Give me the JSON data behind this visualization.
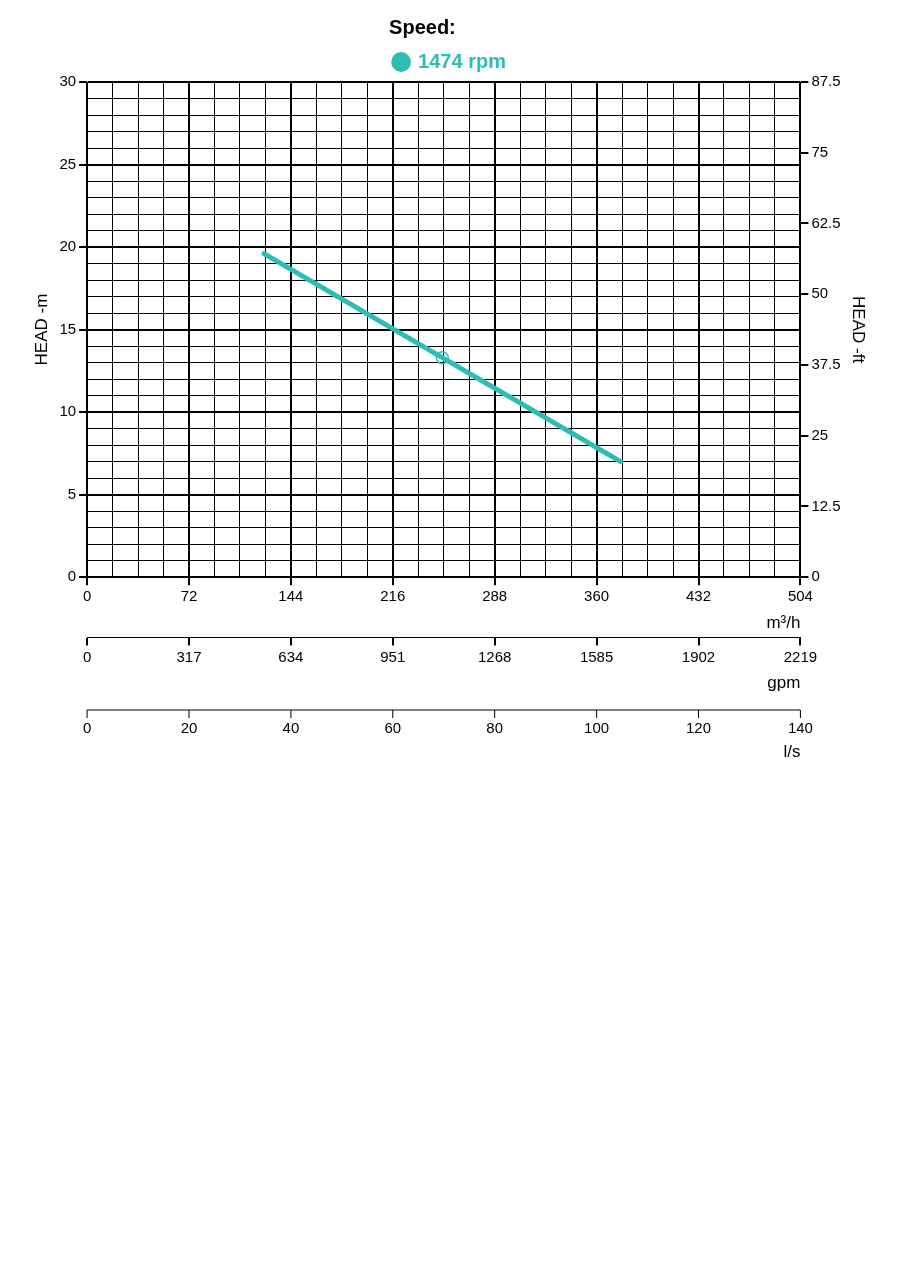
{
  "chart_data": {
    "type": "line",
    "legend_title": "Speed:",
    "legend": "top",
    "xlabel": "m³/h",
    "x2label": "gpm",
    "annotations": [
      "0",
      "20",
      "40",
      "60",
      "80",
      "100",
      "120",
      "140",
      "l/s"
    ],
    "ylabel": "HEAD -m",
    "y2label": "HEAD -ft",
    "xlim": [
      0,
      504
    ],
    "xticks": [
      0,
      {
        "value": 18,
        "label": null
      },
      {
        "value": 36,
        "label": null
      },
      {
        "value": 54,
        "label": null
      },
      72,
      {
        "value": 90,
        "label": null
      },
      {
        "value": 108,
        "label": null
      },
      {
        "value": 126,
        "label": null
      },
      144,
      {
        "value": 162,
        "label": null
      },
      {
        "value": 180,
        "label": null
      },
      {
        "value": 198,
        "label": null
      },
      216,
      {
        "value": 234,
        "label": null
      },
      {
        "value": 252,
        "label": null
      },
      {
        "value": 270,
        "label": null
      },
      288,
      {
        "value": 306,
        "label": null
      },
      {
        "value": 324,
        "label": null
      },
      {
        "value": 342,
        "label": null
      },
      360,
      {
        "value": 378,
        "label": null
      },
      {
        "value": 396,
        "label": null
      },
      {
        "value": 414,
        "label": null
      },
      432,
      {
        "value": 450,
        "label": null
      },
      {
        "value": 468,
        "label": null
      },
      {
        "value": 486,
        "label": null
      },
      504
    ],
    "x2lim": [
      0,
      2219
    ],
    "x2ticks": [
      0,
      317,
      634,
      951,
      1268,
      1585,
      1902,
      2219
    ],
    "ylim": [
      0,
      30
    ],
    "yticks": [
      0,
      {
        "value": 1,
        "label": null
      },
      {
        "value": 2,
        "label": null
      },
      {
        "value": 3,
        "label": null
      },
      {
        "value": 4,
        "label": null
      },
      5,
      {
        "value": 6,
        "label": null
      },
      {
        "value": 7,
        "label": null
      },
      {
        "value": 8,
        "label": null
      },
      {
        "value": 9,
        "label": null
      },
      10,
      {
        "value": 11,
        "label": null
      },
      {
        "value": 12,
        "label": null
      },
      {
        "value": 13,
        "label": null
      },
      {
        "value": 14,
        "label": null
      },
      15,
      {
        "value": 16,
        "label": null
      },
      {
        "value": 17,
        "label": null
      },
      {
        "value": 18,
        "label": null
      },
      {
        "value": 19,
        "label": null
      },
      20,
      {
        "value": 21,
        "label": null
      },
      {
        "value": 22,
        "label": null
      },
      {
        "value": 23,
        "label": null
      },
      {
        "value": 24,
        "label": null
      },
      25,
      {
        "value": 26,
        "label": null
      },
      {
        "value": 27,
        "label": null
      },
      {
        "value": 28,
        "label": null
      },
      {
        "value": 29,
        "label": null
      },
      30
    ],
    "y2lim": [
      0,
      87.5
    ],
    "y2ticks": [
      0,
      12.5,
      25,
      37.5,
      50,
      62.5,
      75,
      87.5
    ],
    "grid": true,
    "series": [
      {
        "name": "1474 rpm",
        "type": "line",
        "marker": "none",
        "color": "#2dbdb4",
        "x": [
          125,
          251,
          377
        ],
        "values": [
          19.6,
          13.3,
          7.0
        ]
      },
      {
        "type": "scatter",
        "marker": "circle",
        "color": "#2dbdb4",
        "x": [
          251
        ],
        "values": [
          13.3
        ]
      }
    ]
  }
}
